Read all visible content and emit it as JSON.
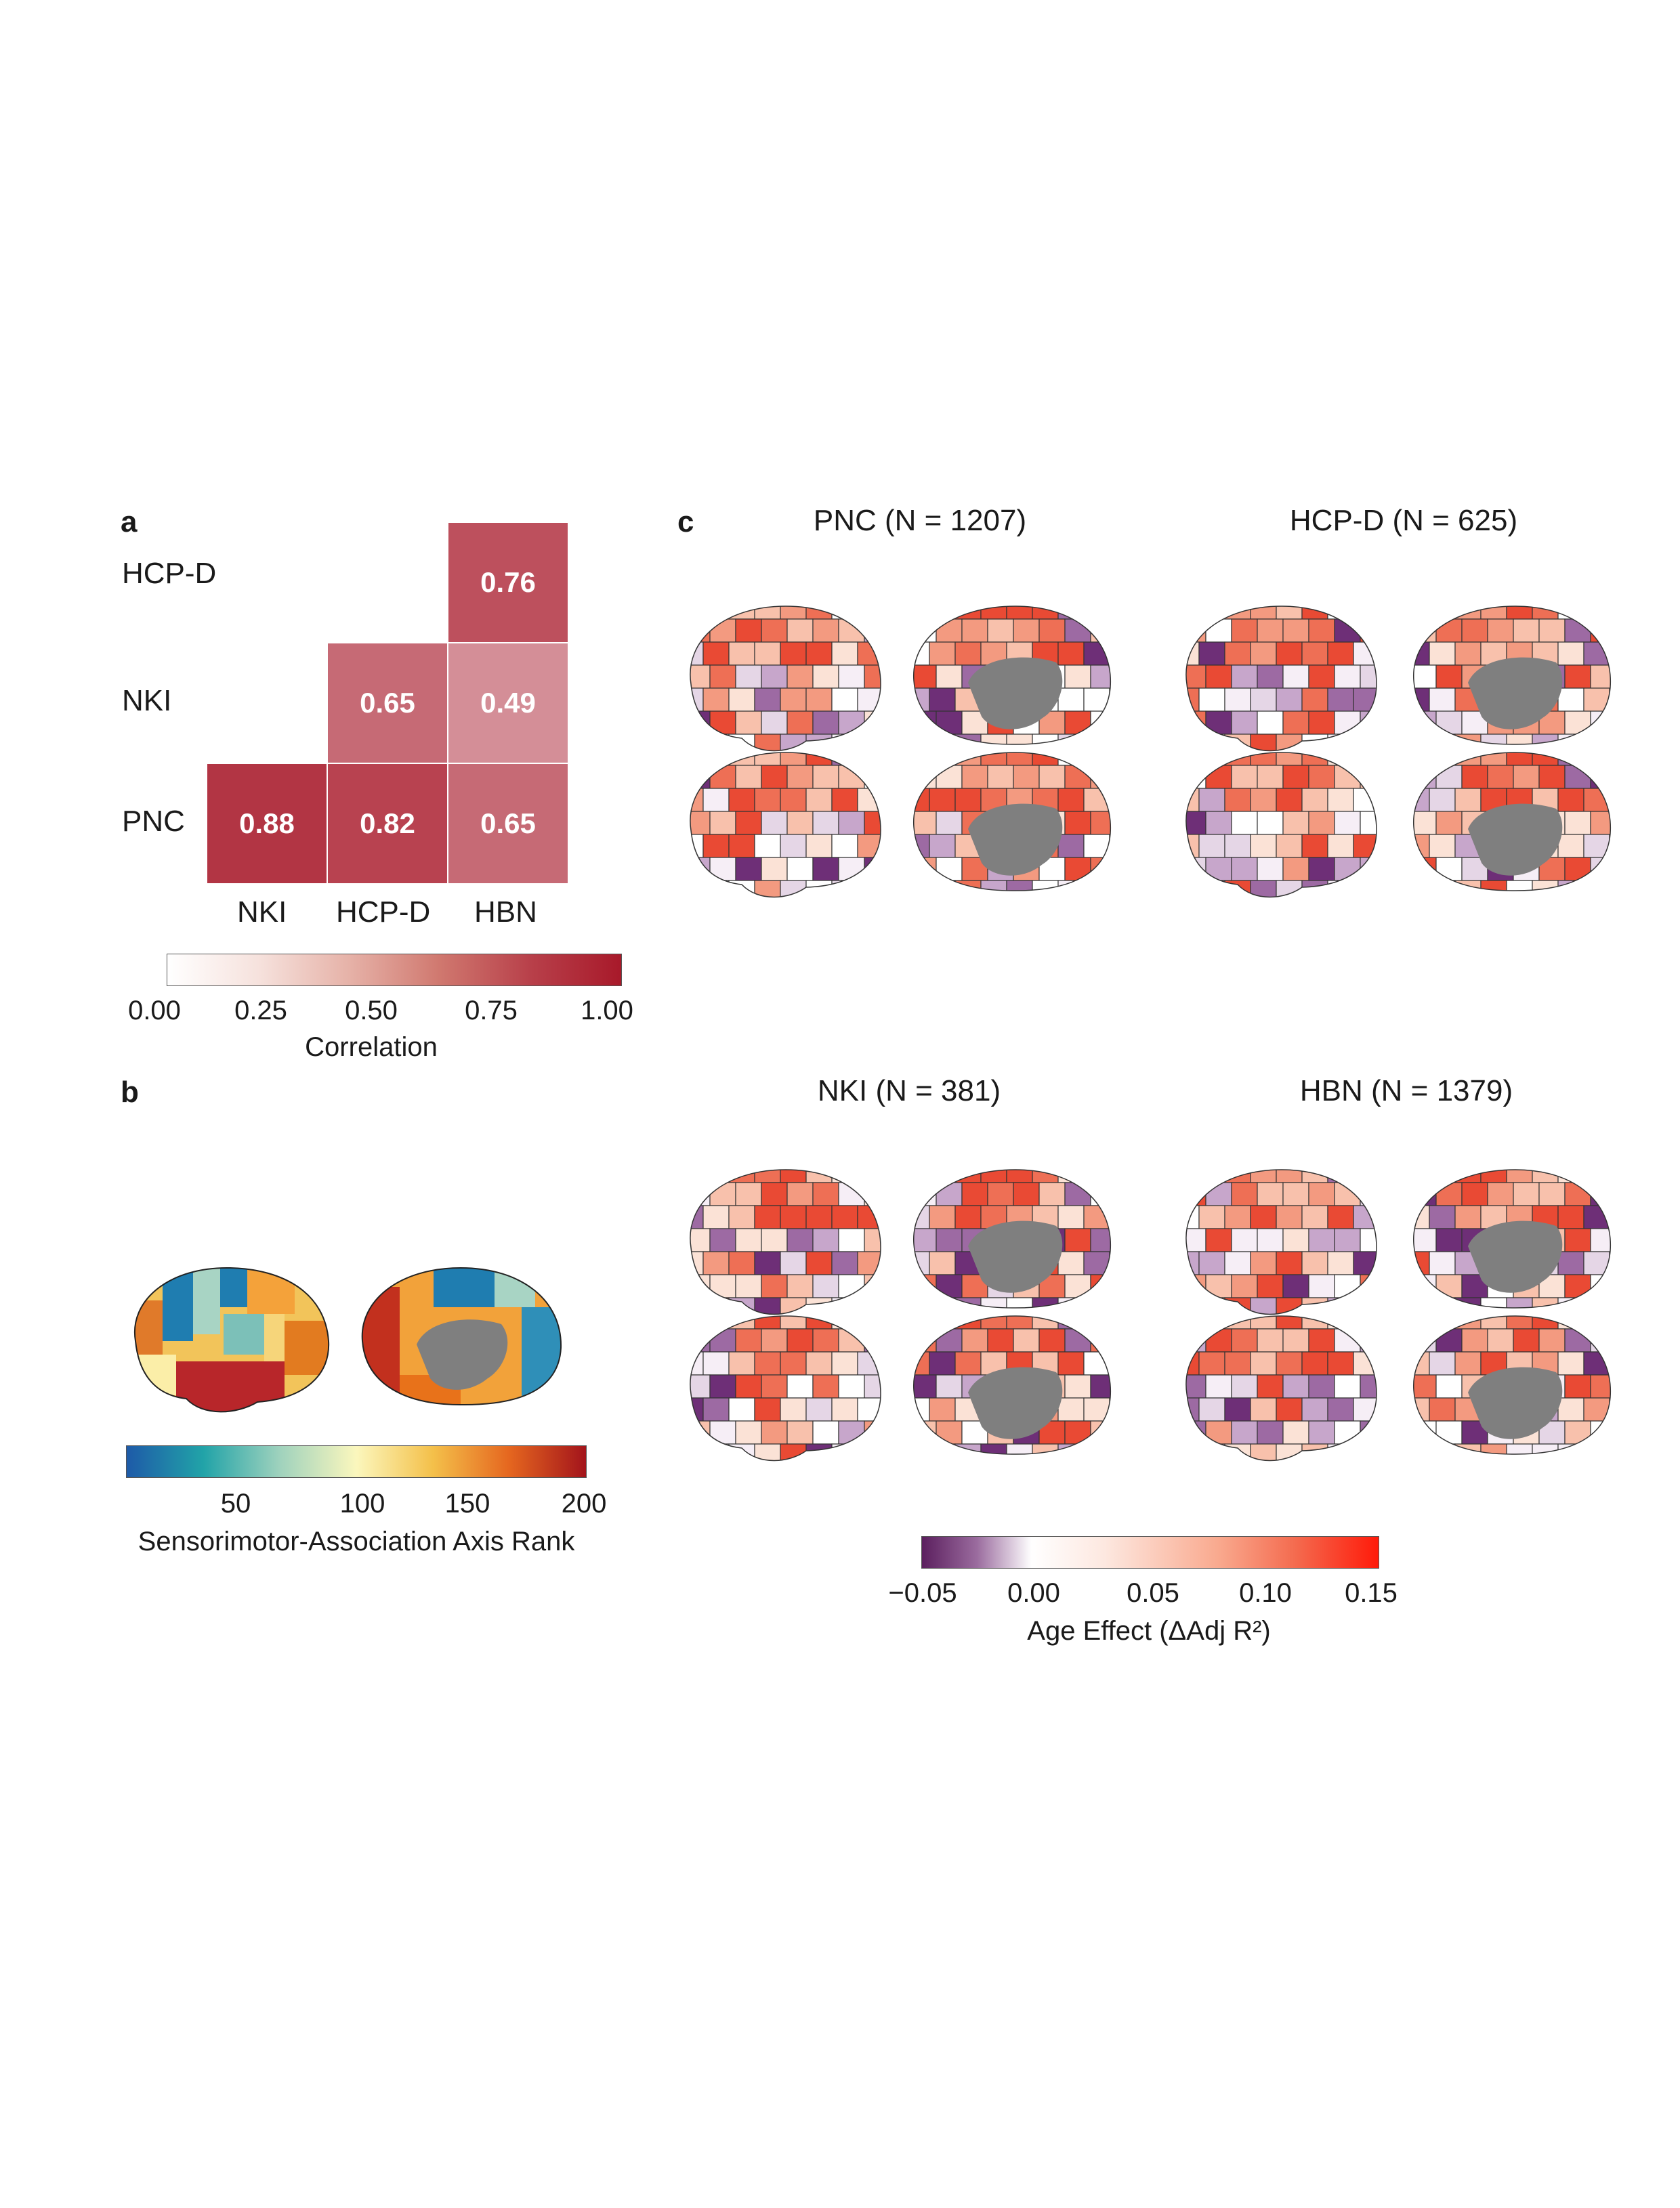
{
  "panel_a": {
    "letter": "a",
    "row_labels": [
      "HCP-D",
      "NKI",
      "PNC"
    ],
    "col_labels": [
      "NKI",
      "HCP-D",
      "HBN"
    ],
    "colorbar": {
      "label": "Correlation",
      "ticks": [
        "0.00",
        "0.25",
        "0.50",
        "0.75",
        "1.00"
      ],
      "low_color": "#ffffff",
      "high_color": "#a8192a"
    }
  },
  "panel_b": {
    "letter": "b",
    "colorbar": {
      "label": "Sensorimotor-Association Axis Rank",
      "ticks": [
        "50",
        "100",
        "150",
        "200"
      ]
    }
  },
  "panel_c": {
    "letter": "c",
    "titles": [
      "PNC (N = 1207)",
      "HCP-D (N = 625)",
      "NKI (N = 381)",
      "HBN (N = 1379)"
    ],
    "colorbar": {
      "label": "Age Effect (ΔAdj R²)",
      "ticks": [
        "−0.05",
        "0.00",
        "0.05",
        "0.10",
        "0.15"
      ]
    }
  },
  "chart_data": [
    {
      "type": "heatmap",
      "rows": [
        "HCP-D",
        "NKI",
        "PNC"
      ],
      "columns": [
        "NKI",
        "HCP-D",
        "HBN"
      ],
      "values": [
        [
          null,
          null,
          0.76
        ],
        [
          null,
          0.65,
          0.49
        ],
        [
          0.88,
          0.82,
          0.65
        ]
      ],
      "colorbar_label": "Correlation",
      "colorbar_range": [
        0,
        1
      ]
    }
  ]
}
